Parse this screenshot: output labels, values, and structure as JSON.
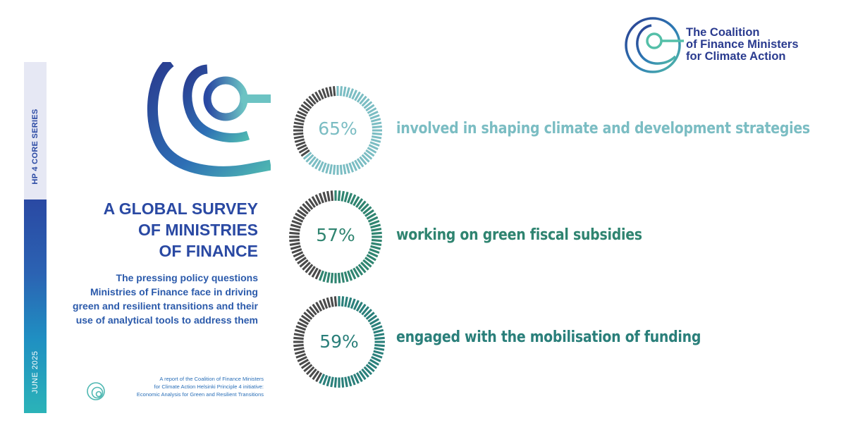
{
  "cover": {
    "series_label": "HP 4 CORE SERIES",
    "date_label": "JUNE 2025",
    "title_lines": [
      "A GLOBAL SURVEY",
      "OF MINISTRIES",
      "OF FINANCE"
    ],
    "subtitle_lines": [
      "The pressing policy questions",
      "Ministries of Finance face in driving",
      "green and resilient transitions and their",
      "use of analytical tools to address them"
    ],
    "footer_lines": [
      "A report of the Coalition of Finance Ministers",
      "for Climate Action Helsinki Principle 4 initiative:",
      "Economic Analysis for Green and Resilient Transitions"
    ]
  },
  "org_logo": {
    "lines": [
      "The Coalition",
      "of Finance Ministers",
      "for Climate Action"
    ]
  },
  "stats": [
    {
      "percent": 65,
      "label_text": "65%",
      "description": "involved in shaping climate and development strategies",
      "color": "#7bbdc3"
    },
    {
      "percent": 57,
      "label_text": "57%",
      "description": "working on green fiscal subsidies",
      "color": "#2f8470"
    },
    {
      "percent": 59,
      "label_text": "59%",
      "description": "engaged with the mobilisation of funding",
      "color": "#2a7f7a"
    }
  ],
  "colors": {
    "brand_blue": "#2a49a3",
    "ring_dark": "#4a4a4a"
  }
}
